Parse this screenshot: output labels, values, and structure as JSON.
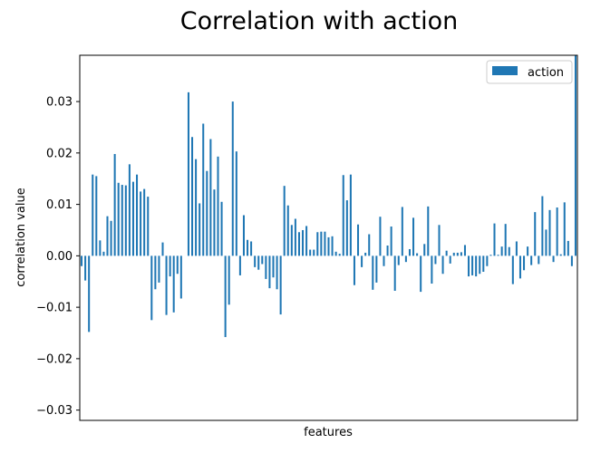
{
  "chart_data": {
    "type": "bar",
    "title": "Correlation with action",
    "xlabel": "features",
    "ylabel": "correlation value",
    "ylim": [
      -0.032,
      0.039
    ],
    "yticks": [
      -0.03,
      -0.02,
      -0.01,
      0.0,
      0.01,
      0.02,
      0.03
    ],
    "ytick_labels": [
      "−0.03",
      "−0.02",
      "−0.01",
      "0.00",
      "0.01",
      "0.02",
      "0.03"
    ],
    "grid": false,
    "legend_position": "top-right",
    "color": "#1f77b4",
    "series": [
      {
        "name": "action",
        "values": [
          -0.002,
          -0.0048,
          -0.0148,
          0.0158,
          0.0155,
          0.003,
          0.0008,
          0.0077,
          0.0068,
          0.0198,
          0.0142,
          0.0138,
          0.0137,
          0.0178,
          0.0144,
          0.0158,
          0.0125,
          0.013,
          0.0115,
          -0.0125,
          -0.0065,
          -0.0052,
          0.0026,
          -0.0115,
          -0.004,
          -0.011,
          -0.0035,
          -0.0083,
          0.0,
          0.0318,
          0.0231,
          0.0188,
          0.0102,
          0.0257,
          0.0165,
          0.0227,
          0.0129,
          0.0193,
          0.0105,
          -0.0158,
          -0.0095,
          0.03,
          0.0203,
          -0.0038,
          0.0079,
          0.0031,
          0.0028,
          -0.0022,
          -0.0027,
          -0.0016,
          -0.0045,
          -0.0063,
          -0.0042,
          -0.0065,
          -0.0114,
          0.0136,
          0.0098,
          0.006,
          0.0072,
          0.0046,
          0.005,
          0.0058,
          0.0012,
          0.0012,
          0.0046,
          0.0047,
          0.0047,
          0.0036,
          0.0038,
          0.0008,
          0.0004,
          0.0157,
          0.0108,
          0.0158,
          -0.0057,
          0.0061,
          -0.0022,
          0.0006,
          0.0042,
          -0.0066,
          -0.0052,
          0.0076,
          -0.002,
          0.002,
          0.0057,
          -0.0068,
          -0.0018,
          0.0095,
          -0.0012,
          0.0013,
          0.0074,
          0.0005,
          -0.007,
          0.0023,
          0.0096,
          -0.0054,
          -0.0016,
          0.006,
          -0.0035,
          0.001,
          -0.0015,
          0.0006,
          0.0006,
          0.0007,
          0.0021,
          -0.004,
          -0.0038,
          -0.004,
          -0.0035,
          -0.0031,
          -0.002,
          0.0002,
          0.0063,
          0.0002,
          0.0018,
          0.0062,
          0.0017,
          -0.0055,
          0.0028,
          -0.0044,
          -0.0028,
          0.0018,
          -0.0018,
          0.0085,
          -0.0016,
          0.0116,
          0.0051,
          0.0089,
          -0.0012,
          0.0094,
          0.0003,
          0.0104,
          0.0029,
          -0.002,
          0.039
        ]
      }
    ]
  }
}
